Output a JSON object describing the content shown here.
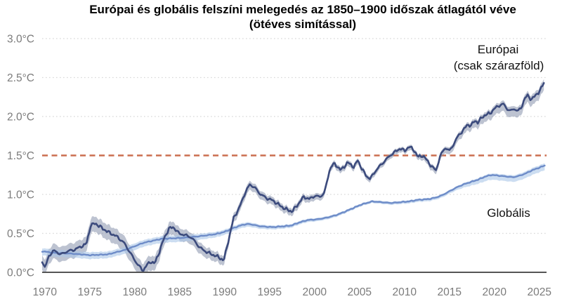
{
  "title": {
    "line1": "Európai és globális felszíni melegedés az 1850–1900 időszak átlagától véve",
    "line2": "(ötéves simítással)"
  },
  "colors": {
    "background": "#ffffff",
    "title_text": "#000000",
    "tick_text": "#7b7b7b",
    "axis_line": "#555555",
    "gridline": "#d8d8d8",
    "reference_line": "#cb6e4f",
    "europe_line": "#3c4b7d",
    "europe_band": "#8792ab",
    "global_line": "#6e8cc8",
    "global_band": "#aac6e8"
  },
  "chart_data": {
    "type": "line",
    "title": "Európai és globális felszíni melegedés az 1850–1900 időszak átlagától véve (ötéves simítással)",
    "xlim": [
      1969.7,
      2025.8
    ],
    "ylim": [
      0,
      3.0
    ],
    "grid": "horizontal dotted gridlines at 0.5°C steps",
    "legend_position": "annotations next to lines",
    "x_ticks": [
      1970,
      1975,
      1980,
      1985,
      1990,
      1995,
      2000,
      2005,
      2010,
      2015,
      2020,
      2025
    ],
    "y_ticks": {
      "values": [
        3.0,
        2.5,
        2.0,
        1.5,
        1.0,
        0.5,
        0.0
      ],
      "labels": [
        "3.0°C",
        "2.5°C",
        "2.0°C",
        "1.5°C",
        "1.0°C",
        "0.5°C",
        "0.0°C"
      ]
    },
    "reference_line": {
      "value": 1.5,
      "style": "dashed",
      "color": "#cb6e4f"
    },
    "texture": {
      "note": "both curves drawn with fine sub-annual wiggle as in source",
      "europe_wiggle_amplitude": 0.022,
      "global_wiggle_amplitude": 0.006
    },
    "series": [
      {
        "name": "Európai (csak szárazföld)",
        "annotation_line1": "Európai",
        "annotation_line2": "(csak szárazföld)",
        "color": "#3c4b7d",
        "band_color": "#8792ab",
        "band_opacity": 0.55,
        "line_width": 2.6,
        "x": [
          1969.7,
          1970.0,
          1970.5,
          1971.0,
          1971.8,
          1972.5,
          1973.3,
          1974.0,
          1974.6,
          1975.1,
          1975.6,
          1976.2,
          1977.0,
          1978.0,
          1978.8,
          1979.5,
          1980.2,
          1980.9,
          1981.4,
          1981.8,
          1982.2,
          1982.7,
          1983.2,
          1983.8,
          1984.3,
          1984.9,
          1985.5,
          1986.1,
          1986.6,
          1987.2,
          1988.0,
          1988.8,
          1989.4,
          1989.9,
          1990.5,
          1991.0,
          1991.6,
          1992.2,
          1992.8,
          1993.4,
          1994.0,
          1994.7,
          1995.4,
          1996.1,
          1996.8,
          1997.5,
          1998.2,
          1998.8,
          1999.4,
          2000.0,
          2000.6,
          2001.1,
          2001.7,
          2002.2,
          2002.9,
          2003.7,
          2004.4,
          2004.8,
          2005.3,
          2005.8,
          2006.2,
          2006.7,
          2007.3,
          2007.9,
          2008.4,
          2009.0,
          2009.5,
          2010.0,
          2010.5,
          2011.0,
          2011.5,
          2012.0,
          2012.5,
          2013.0,
          2013.5,
          2014.0,
          2014.5,
          2015.0,
          2015.5,
          2016.0,
          2016.6,
          2017.0,
          2017.4,
          2017.8,
          2018.2,
          2018.6,
          2019.0,
          2019.5,
          2020.0,
          2020.5,
          2021.0,
          2021.4,
          2021.8,
          2022.2,
          2022.6,
          2023.0,
          2023.3,
          2023.7,
          2024.1,
          2024.5,
          2024.9,
          2025.2,
          2025.5
        ],
        "values": [
          0.15,
          0.06,
          0.22,
          0.28,
          0.23,
          0.27,
          0.29,
          0.33,
          0.36,
          0.6,
          0.63,
          0.58,
          0.52,
          0.46,
          0.38,
          0.25,
          0.12,
          0.02,
          0.1,
          0.14,
          0.11,
          0.25,
          0.42,
          0.56,
          0.58,
          0.5,
          0.48,
          0.46,
          0.41,
          0.32,
          0.26,
          0.22,
          0.19,
          0.15,
          0.45,
          0.7,
          0.82,
          1.0,
          1.13,
          1.08,
          1.0,
          0.95,
          0.92,
          0.86,
          0.81,
          0.78,
          0.88,
          0.97,
          0.94,
          0.98,
          0.97,
          1.02,
          1.33,
          1.4,
          1.31,
          1.41,
          1.35,
          1.44,
          1.32,
          1.23,
          1.2,
          1.29,
          1.37,
          1.44,
          1.5,
          1.55,
          1.59,
          1.56,
          1.61,
          1.58,
          1.48,
          1.5,
          1.44,
          1.36,
          1.31,
          1.5,
          1.6,
          1.56,
          1.65,
          1.76,
          1.83,
          1.9,
          1.88,
          1.95,
          1.92,
          1.99,
          2.02,
          2.04,
          2.1,
          2.14,
          2.16,
          2.1,
          2.07,
          2.1,
          2.07,
          2.11,
          2.22,
          2.27,
          2.22,
          2.26,
          2.31,
          2.36,
          2.43
        ],
        "band": {
          "years": [
            1969.7,
            1980,
            1990,
            2000,
            2010,
            2015,
            2020,
            2025.5
          ],
          "below": [
            0.1,
            0.11,
            0.07,
            0.05,
            0.04,
            0.06,
            0.09,
            0.09
          ],
          "above": [
            0.09,
            0.09,
            0.05,
            0.035,
            0.025,
            0.03,
            0.04,
            0.05
          ]
        }
      },
      {
        "name": "Globális",
        "annotation_line1": "Globális",
        "annotation_line2": "",
        "color": "#6e8cc8",
        "band_color": "#aac6e8",
        "band_opacity": 0.6,
        "line_width": 2.4,
        "x": [
          1969.7,
          1971.0,
          1973.0,
          1975.0,
          1977.0,
          1979.0,
          1981.0,
          1983.0,
          1985.0,
          1987.0,
          1989.0,
          1990.0,
          1991.0,
          1992.0,
          1992.7,
          1994.0,
          1995.3,
          1996.5,
          1997.4,
          1998.3,
          1999.2,
          2000.3,
          2001.3,
          2002.3,
          2003.2,
          2004.2,
          2005.2,
          2006.4,
          2007.5,
          2008.5,
          2009.5,
          2010.5,
          2011.5,
          2012.7,
          2013.5,
          2014.2,
          2015.0,
          2015.8,
          2016.6,
          2017.4,
          2018.2,
          2019.0,
          2019.7,
          2020.5,
          2021.3,
          2022.1,
          2022.8,
          2023.5,
          2024.2,
          2024.9,
          2025.6
        ],
        "values": [
          0.27,
          0.25,
          0.24,
          0.22,
          0.23,
          0.29,
          0.38,
          0.43,
          0.44,
          0.46,
          0.49,
          0.52,
          0.57,
          0.61,
          0.62,
          0.59,
          0.58,
          0.59,
          0.6,
          0.64,
          0.67,
          0.68,
          0.7,
          0.73,
          0.77,
          0.82,
          0.87,
          0.91,
          0.9,
          0.89,
          0.9,
          0.91,
          0.93,
          0.94,
          0.96,
          0.99,
          1.04,
          1.09,
          1.13,
          1.16,
          1.19,
          1.23,
          1.25,
          1.24,
          1.23,
          1.22,
          1.24,
          1.27,
          1.31,
          1.34,
          1.37
        ],
        "band": {
          "years": [
            1969.7,
            1985,
            1995,
            2005,
            2015,
            2019,
            2025.6
          ],
          "below": [
            0.05,
            0.05,
            0.03,
            0.02,
            0.03,
            0.06,
            0.06
          ],
          "above": [
            0.04,
            0.035,
            0.02,
            0.015,
            0.015,
            0.02,
            0.03
          ]
        }
      }
    ]
  }
}
